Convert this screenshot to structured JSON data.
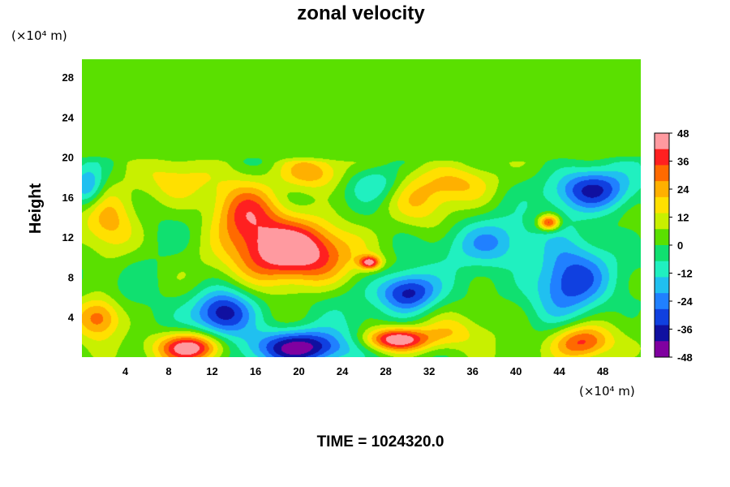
{
  "chart_data": {
    "type": "heatmap",
    "title": "zonal velocity",
    "ylabel": "Height",
    "xlabel": "",
    "x_unit": "(×10⁴ m)",
    "y_unit": "(×10⁴ m)",
    "xlim": [
      0,
      51.5
    ],
    "ylim": [
      0,
      29.8
    ],
    "x_ticks": [
      4,
      8,
      12,
      16,
      20,
      24,
      28,
      32,
      36,
      40,
      44,
      48
    ],
    "y_ticks": [
      4,
      8,
      12,
      16,
      20,
      24,
      28
    ],
    "colorbar": {
      "min": -48,
      "max": 48,
      "ticks": [
        48,
        36,
        24,
        12,
        0,
        -12,
        -24,
        -36,
        -48
      ],
      "colors": [
        "#ff9aa0",
        "#ff2020",
        "#ff6a00",
        "#ffb000",
        "#ffe000",
        "#c8f000",
        "#5ae000",
        "#10e070",
        "#20f0c0",
        "#20c0f0",
        "#2080ff",
        "#1040e0",
        "#1010a0",
        "#8000a0"
      ]
    },
    "background_value": 2,
    "features": [
      {
        "x": 19,
        "y": 10.5,
        "rx": 5.5,
        "ry": 3.2,
        "value": 50
      },
      {
        "x": 15,
        "y": 14.5,
        "rx": 3.0,
        "ry": 3.0,
        "value": 28
      },
      {
        "x": 13,
        "y": 4.5,
        "rx": 2.8,
        "ry": 2.4,
        "value": -45
      },
      {
        "x": 10,
        "y": 1.0,
        "rx": 3.0,
        "ry": 1.5,
        "value": 50
      },
      {
        "x": 20,
        "y": 1.0,
        "rx": 4.5,
        "ry": 1.8,
        "value": -50
      },
      {
        "x": 30,
        "y": 6.5,
        "rx": 2.8,
        "ry": 2.0,
        "value": -42
      },
      {
        "x": 29,
        "y": 1.8,
        "rx": 3.0,
        "ry": 1.2,
        "value": 50
      },
      {
        "x": 47,
        "y": 16.8,
        "rx": 3.8,
        "ry": 2.2,
        "value": -40
      },
      {
        "x": 45,
        "y": 7.5,
        "rx": 3.5,
        "ry": 3.5,
        "value": -38
      },
      {
        "x": 46,
        "y": 1.5,
        "rx": 2.8,
        "ry": 1.8,
        "value": 38
      },
      {
        "x": 38,
        "y": 11.5,
        "rx": 4.5,
        "ry": 2.5,
        "value": -26
      },
      {
        "x": 1.5,
        "y": 4.0,
        "rx": 2.0,
        "ry": 2.0,
        "value": 30
      },
      {
        "x": 2.5,
        "y": 13.5,
        "rx": 2.5,
        "ry": 3.5,
        "value": 20
      },
      {
        "x": 27,
        "y": 17.5,
        "rx": 2.5,
        "ry": 1.8,
        "value": -18
      },
      {
        "x": 31,
        "y": 15.5,
        "rx": 3.0,
        "ry": 3.0,
        "value": 14
      },
      {
        "x": 8,
        "y": 17.5,
        "rx": 4.0,
        "ry": 2.5,
        "value": 14
      },
      {
        "x": 0.5,
        "y": 17.0,
        "rx": 1.5,
        "ry": 2.0,
        "value": -25
      },
      {
        "x": 35,
        "y": 17.5,
        "rx": 3.5,
        "ry": 2.0,
        "value": 20
      },
      {
        "x": 43,
        "y": 13.5,
        "rx": 1.0,
        "ry": 0.8,
        "value": 42
      },
      {
        "x": 25,
        "y": 6.0,
        "rx": 3.0,
        "ry": 3.5,
        "value": -6
      },
      {
        "x": 38,
        "y": 4.0,
        "rx": 3.0,
        "ry": 2.5,
        "value": 5
      },
      {
        "x": 21,
        "y": 18.5,
        "rx": 3.0,
        "ry": 1.8,
        "value": 26
      },
      {
        "x": 26.5,
        "y": 9.5,
        "rx": 1.0,
        "ry": 0.7,
        "value": 40
      },
      {
        "x": 41,
        "y": 11.0,
        "rx": 2.0,
        "ry": 2.5,
        "value": 6
      },
      {
        "x": 6,
        "y": 10.0,
        "rx": 3.5,
        "ry": 3.5,
        "value": -6
      },
      {
        "x": 34,
        "y": 2.5,
        "rx": 2.5,
        "ry": 1.5,
        "value": 12
      }
    ]
  },
  "footer": {
    "time_text": "TIME = 1024320.0"
  }
}
